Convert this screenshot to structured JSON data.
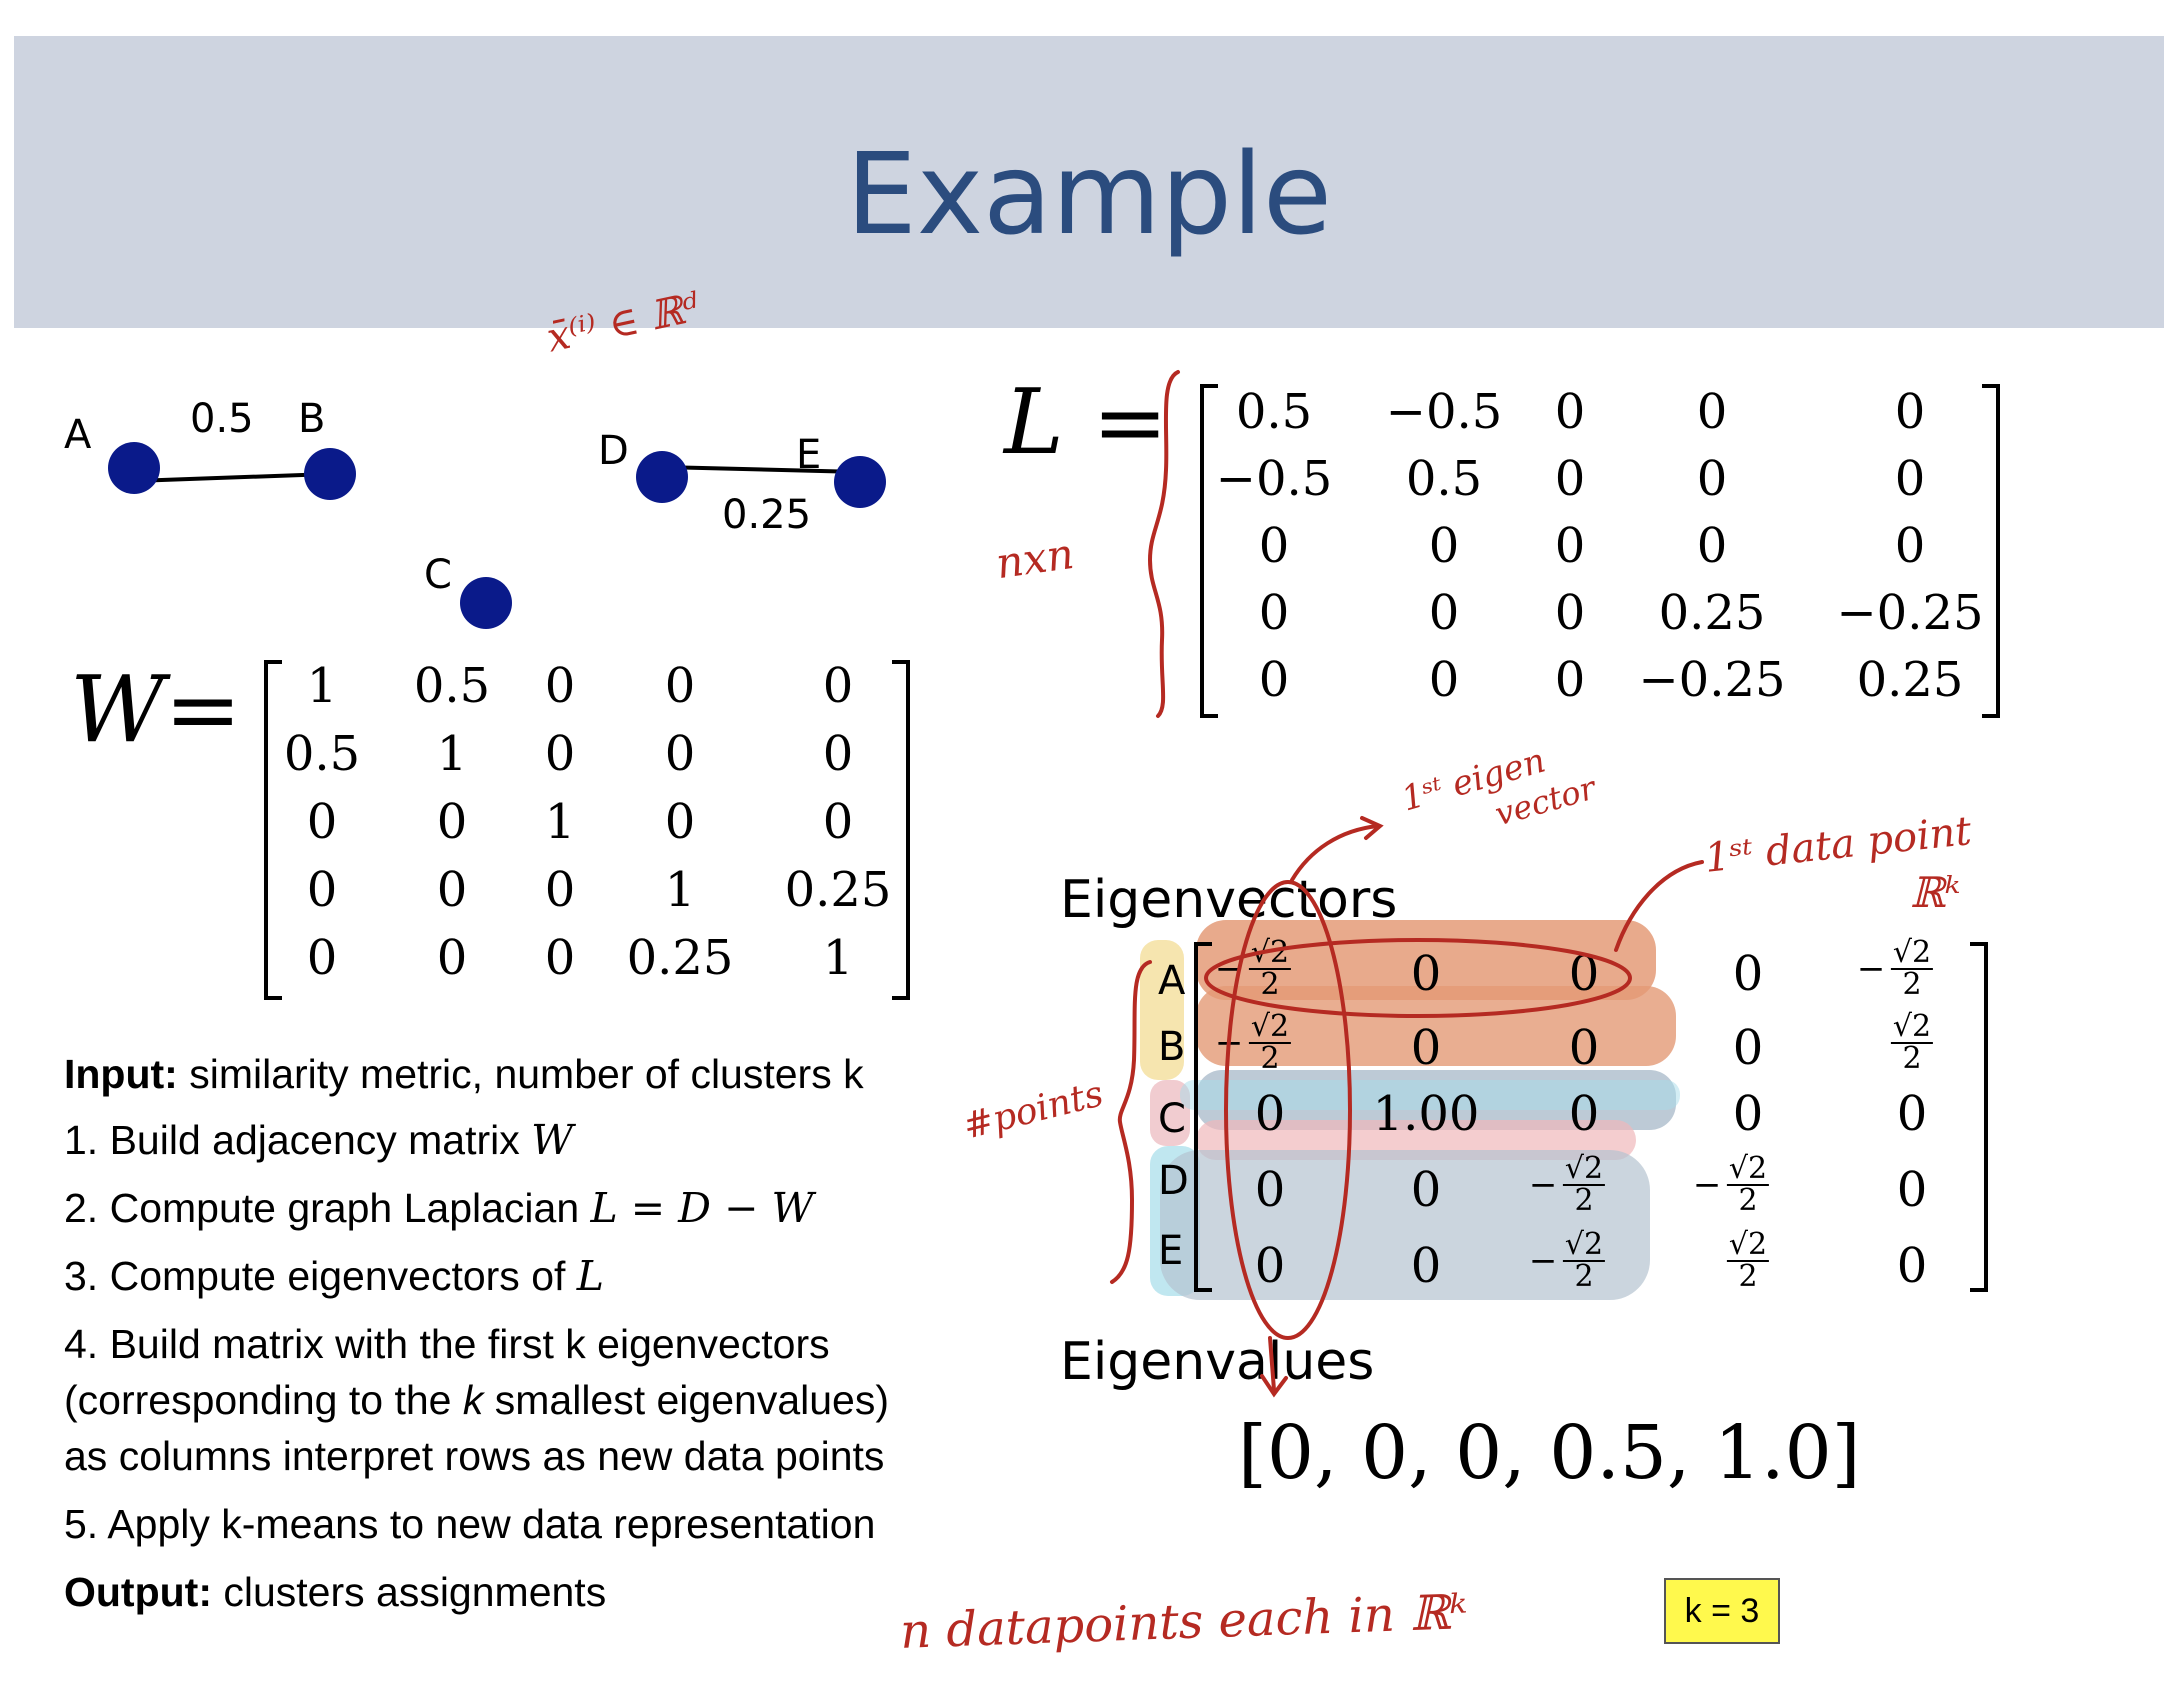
{
  "slide": {
    "title": "Example"
  },
  "graph": {
    "nodes": [
      {
        "id": "A",
        "label": "A"
      },
      {
        "id": "B",
        "label": "B"
      },
      {
        "id": "C",
        "label": "C"
      },
      {
        "id": "D",
        "label": "D"
      },
      {
        "id": "E",
        "label": "E"
      }
    ],
    "edges": [
      {
        "from": "A",
        "to": "B",
        "weight": "0.5"
      },
      {
        "from": "D",
        "to": "E",
        "weight": "0.25"
      }
    ],
    "node_color": "#0a1a8a"
  },
  "w_matrix": {
    "label": "W=",
    "rows": [
      [
        "1",
        "0.5",
        "0",
        "0",
        "0"
      ],
      [
        "0.5",
        "1",
        "0",
        "0",
        "0"
      ],
      [
        "0",
        "0",
        "1",
        "0",
        "0"
      ],
      [
        "0",
        "0",
        "0",
        "1",
        "0.25"
      ],
      [
        "0",
        "0",
        "0",
        "0.25",
        "1"
      ]
    ]
  },
  "l_matrix": {
    "label": "L =",
    "rows": [
      [
        "0.5",
        "−0.5",
        "0",
        "0",
        "0"
      ],
      [
        "−0.5",
        "0.5",
        "0",
        "0",
        "0"
      ],
      [
        "0",
        "0",
        "0",
        "0",
        "0"
      ],
      [
        "0",
        "0",
        "0",
        "0.25",
        "−0.25"
      ],
      [
        "0",
        "0",
        "0",
        "−0.25",
        "0.25"
      ]
    ]
  },
  "eigenvectors": {
    "heading": "Eigenvectors",
    "row_labels": [
      "A",
      "B",
      "C",
      "D",
      "E"
    ],
    "sqrt2": "√2",
    "two": "2",
    "minus": "−",
    "rows": [
      [
        "-frac",
        "0",
        "0",
        "0",
        "-frac"
      ],
      [
        "-frac",
        "0",
        "0",
        "0",
        "frac"
      ],
      [
        "0",
        "1.00",
        "0",
        "0",
        "0"
      ],
      [
        "0",
        "0",
        "-frac",
        "-frac",
        "0"
      ],
      [
        "0",
        "0",
        "-frac",
        "frac",
        "0"
      ]
    ],
    "zero": "0",
    "one": "1.00"
  },
  "eigenvalues": {
    "heading": "Eigenvalues",
    "values": "[0, 0, 0, 0.5, 1.0]"
  },
  "algorithm": {
    "input_label": "Input:",
    "input_text": " similarity metric, number of clusters k",
    "step1_text": "1. Build adjacency matrix ",
    "step1_math": "W",
    "step2_text": "2. Compute graph Laplacian ",
    "step2_math": "L = D − W",
    "step3_text": "3. Compute eigenvectors of  ",
    "step3_math": "L",
    "step4_line1": "4. Build matrix with the first k eigenvectors",
    "step4_line2a": "(corresponding to the ",
    "step4_line2k": "k",
    "step4_line2b": " smallest eigenvalues)",
    "step4_line3": "as columns interpret rows as new data points",
    "step5_text": "5. Apply k-means to new data representation",
    "output_label": "Output:",
    "output_text": " clusters assignments"
  },
  "k_box": {
    "text": "k = 3",
    "color": "#fff94d"
  },
  "annotations": {
    "ink_color": "#b52a22",
    "x_in_rd": "x̄⁽ⁱ⁾ ∈ ℝᵈ",
    "nxn": "nxn",
    "first_eigen_1": "1ˢᵗ eigen",
    "first_eigen_2": "vector",
    "first_data_point": "1ˢᵗ data point",
    "rk": "ℝᵏ",
    "points": "#points",
    "n_datapoints": "n datapoints each in ℝᵏ"
  }
}
